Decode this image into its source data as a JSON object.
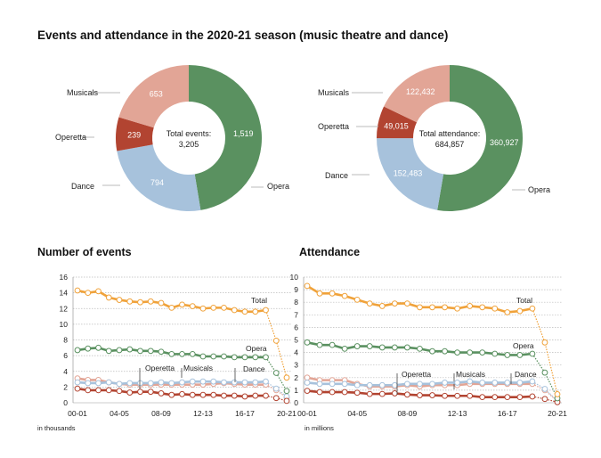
{
  "title": "Events and attendance in the 2020-21 season (music theatre and dance)",
  "colors": {
    "Opera": "#5a9160",
    "Dance": "#a7c2dc",
    "Operetta": "#b24431",
    "Musicals": "#e2a596",
    "Total": "#f0a23a"
  },
  "chart_data": [
    {
      "type": "pie",
      "donut": true,
      "center_label": "Total events:",
      "center_value": "3,205",
      "slices": [
        {
          "name": "Opera",
          "value": 1519,
          "label": "1,519"
        },
        {
          "name": "Dance",
          "value": 794,
          "label": "794"
        },
        {
          "name": "Operetta",
          "value": 239,
          "label": "239"
        },
        {
          "name": "Musicals",
          "value": 653,
          "label": "653"
        }
      ]
    },
    {
      "type": "pie",
      "donut": true,
      "center_label": "Total attendance:",
      "center_value": "684,857",
      "slices": [
        {
          "name": "Opera",
          "value": 360927,
          "label": "360,927"
        },
        {
          "name": "Dance",
          "value": 152483,
          "label": "152,483"
        },
        {
          "name": "Operetta",
          "value": 49015,
          "label": "49,015"
        },
        {
          "name": "Musicals",
          "value": 122432,
          "label": "122,432"
        }
      ]
    },
    {
      "type": "line",
      "title": "Number of events",
      "unit_note": "in thousands",
      "ylim": [
        0,
        16
      ],
      "yticks": [
        0,
        2,
        4,
        6,
        8,
        10,
        12,
        14,
        16
      ],
      "grid": true,
      "x": [
        "00-01",
        "01-02",
        "02-03",
        "03-04",
        "04-05",
        "05-06",
        "06-07",
        "07-08",
        "08-09",
        "09-10",
        "10-11",
        "11-12",
        "12-13",
        "13-14",
        "14-15",
        "15-16",
        "16-17",
        "17-18",
        "18-19",
        "19-20",
        "20-21"
      ],
      "xticklabels": [
        "00-01",
        "04-05",
        "08-09",
        "12-13",
        "16-17",
        "20-21"
      ],
      "series": [
        {
          "name": "Total",
          "values": [
            14.3,
            14.0,
            14.2,
            13.4,
            13.1,
            12.9,
            12.8,
            12.9,
            12.7,
            12.1,
            12.5,
            12.3,
            12.0,
            12.1,
            12.1,
            11.8,
            11.6,
            11.6,
            11.8,
            7.9,
            3.2
          ]
        },
        {
          "name": "Opera",
          "values": [
            6.7,
            6.9,
            7.0,
            6.6,
            6.7,
            6.8,
            6.6,
            6.6,
            6.5,
            6.2,
            6.2,
            6.2,
            5.9,
            5.9,
            5.9,
            5.8,
            5.8,
            5.8,
            5.8,
            3.8,
            1.5
          ]
        },
        {
          "name": "Dance",
          "values": [
            2.6,
            2.5,
            2.5,
            2.6,
            2.4,
            2.5,
            2.5,
            2.5,
            2.6,
            2.5,
            2.6,
            2.7,
            2.7,
            2.7,
            2.6,
            2.6,
            2.6,
            2.6,
            2.7,
            1.8,
            0.8
          ]
        },
        {
          "name": "Musicals",
          "values": [
            3.1,
            2.9,
            2.9,
            2.6,
            2.4,
            2.3,
            2.3,
            2.3,
            2.3,
            2.3,
            2.3,
            2.3,
            2.3,
            2.4,
            2.5,
            2.4,
            2.3,
            2.3,
            2.3,
            1.6,
            0.65
          ]
        },
        {
          "name": "Operetta",
          "values": [
            1.8,
            1.6,
            1.6,
            1.6,
            1.5,
            1.3,
            1.4,
            1.4,
            1.2,
            1.0,
            1.1,
            1.0,
            1.0,
            1.0,
            0.9,
            0.9,
            0.8,
            0.9,
            0.9,
            0.6,
            0.24
          ]
        }
      ]
    },
    {
      "type": "line",
      "title": "Attendance",
      "unit_note": "in millions",
      "ylim": [
        0,
        10
      ],
      "yticks": [
        0,
        1,
        2,
        3,
        4,
        5,
        6,
        7,
        8,
        9,
        10
      ],
      "grid": true,
      "x": [
        "00-01",
        "01-02",
        "02-03",
        "03-04",
        "04-05",
        "05-06",
        "06-07",
        "07-08",
        "08-09",
        "09-10",
        "10-11",
        "11-12",
        "12-13",
        "13-14",
        "14-15",
        "15-16",
        "16-17",
        "17-18",
        "18-19",
        "19-20",
        "20-21"
      ],
      "xticklabels": [
        "00-01",
        "04-05",
        "08-09",
        "12-13",
        "16-17",
        "20-21"
      ],
      "series": [
        {
          "name": "Total",
          "values": [
            9.3,
            8.7,
            8.7,
            8.5,
            8.2,
            7.9,
            7.7,
            7.9,
            7.9,
            7.6,
            7.6,
            7.6,
            7.5,
            7.7,
            7.6,
            7.5,
            7.2,
            7.3,
            7.5,
            4.8,
            0.68
          ]
        },
        {
          "name": "Opera",
          "values": [
            4.8,
            4.6,
            4.6,
            4.3,
            4.5,
            4.5,
            4.4,
            4.4,
            4.4,
            4.3,
            4.1,
            4.1,
            4.0,
            4.0,
            4.0,
            3.9,
            3.8,
            3.8,
            3.9,
            2.4,
            0.36
          ]
        },
        {
          "name": "Dance",
          "values": [
            1.6,
            1.5,
            1.5,
            1.5,
            1.4,
            1.4,
            1.4,
            1.4,
            1.5,
            1.5,
            1.5,
            1.6,
            1.6,
            1.7,
            1.6,
            1.6,
            1.6,
            1.6,
            1.7,
            1.1,
            0.15
          ]
        },
        {
          "name": "Musicals",
          "values": [
            2.0,
            1.8,
            1.8,
            1.8,
            1.5,
            1.3,
            1.3,
            1.3,
            1.4,
            1.3,
            1.4,
            1.4,
            1.4,
            1.5,
            1.5,
            1.5,
            1.5,
            1.5,
            1.5,
            1.0,
            0.12
          ]
        },
        {
          "name": "Operetta",
          "values": [
            0.95,
            0.85,
            0.85,
            0.85,
            0.8,
            0.7,
            0.7,
            0.75,
            0.65,
            0.6,
            0.6,
            0.55,
            0.55,
            0.55,
            0.45,
            0.45,
            0.45,
            0.45,
            0.5,
            0.3,
            0.05
          ]
        }
      ]
    }
  ]
}
